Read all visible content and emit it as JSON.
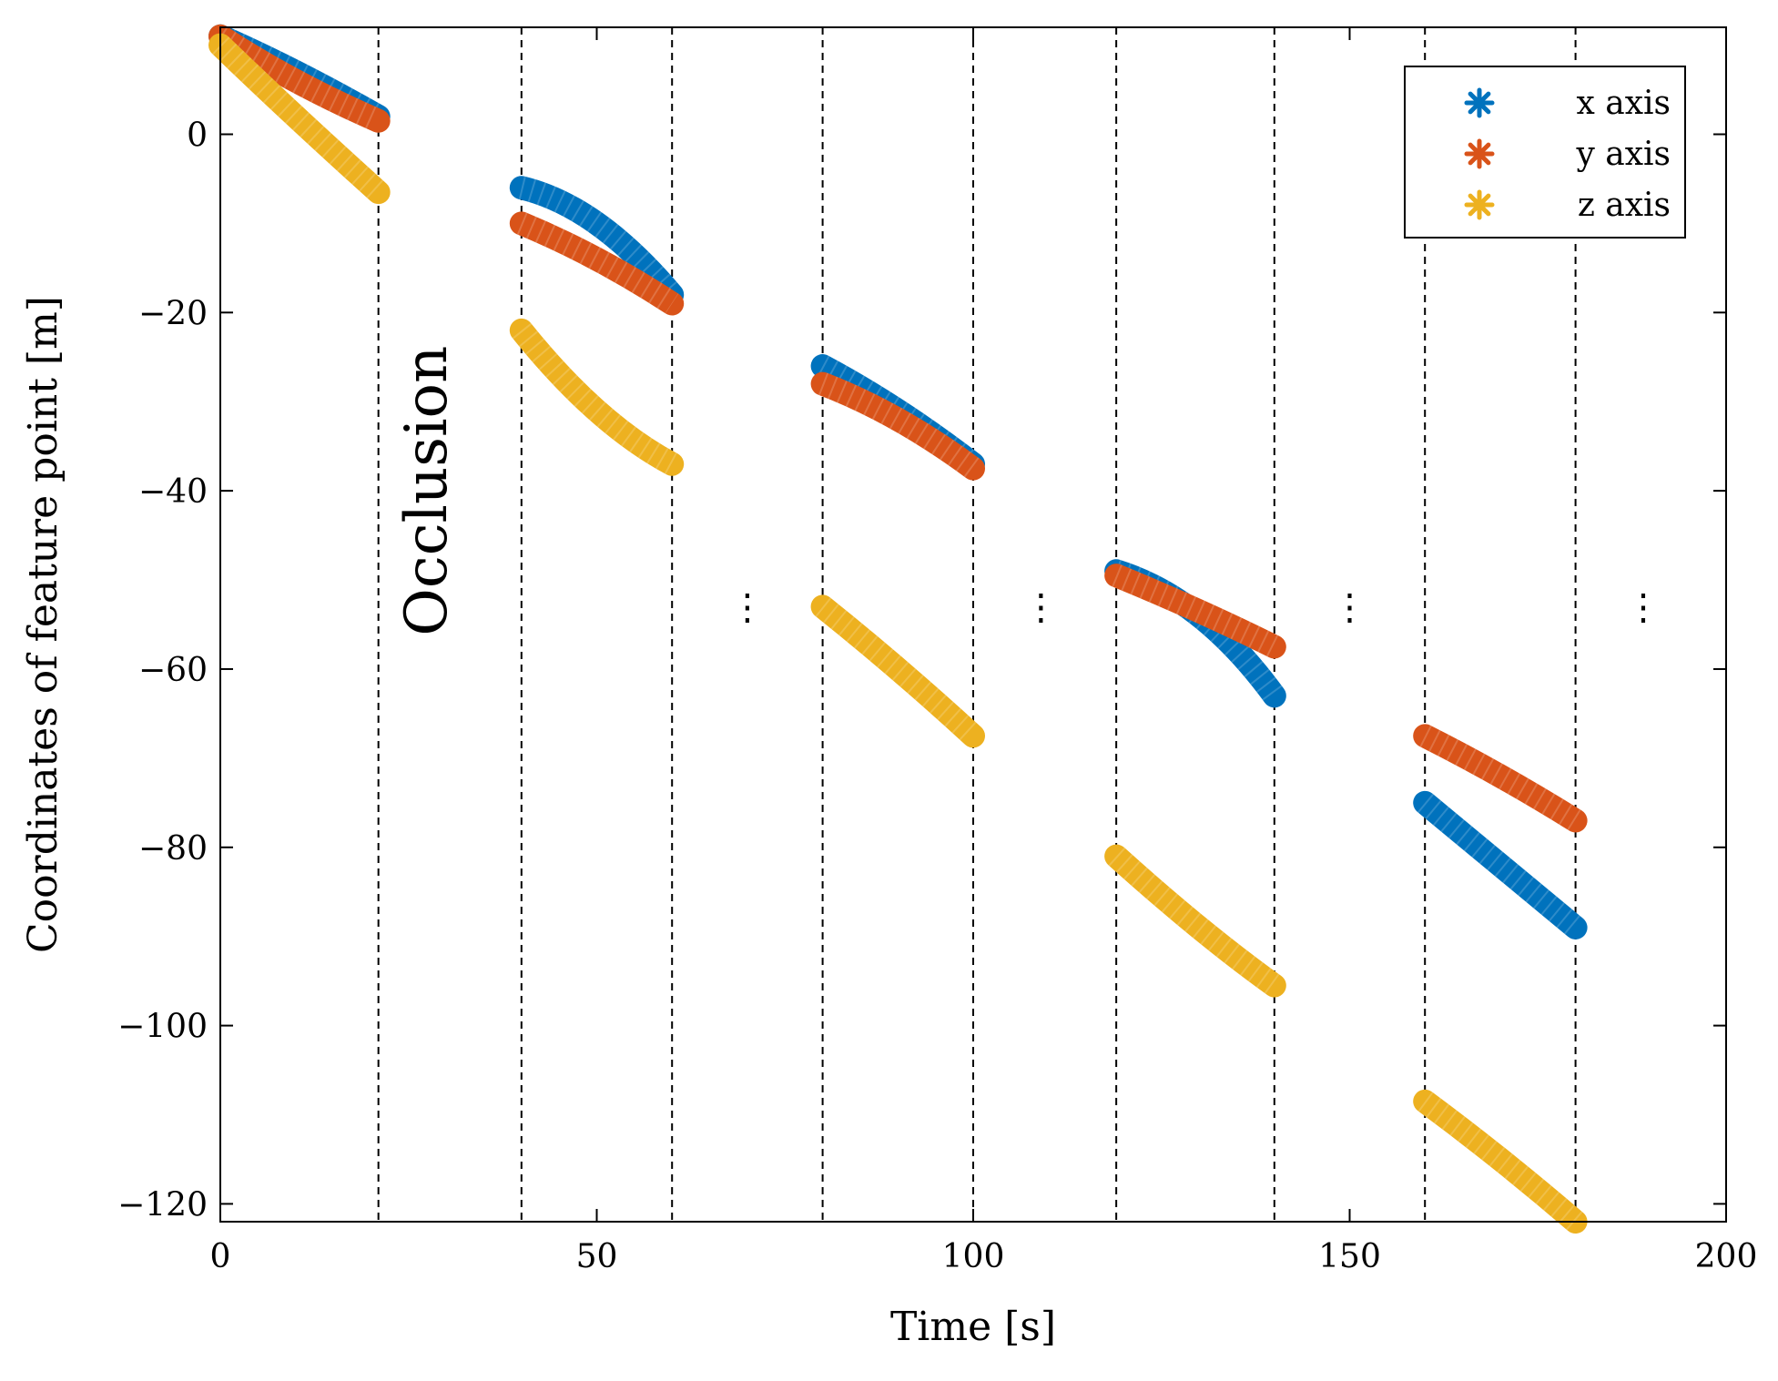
{
  "chart_data": {
    "type": "scatter",
    "title": "",
    "xlabel": "Time [s]",
    "ylabel": "Coordinates of feature point [m]",
    "xlim": [
      0,
      200
    ],
    "ylim": [
      -122,
      12
    ],
    "xticks": [
      0,
      50,
      100,
      150,
      200
    ],
    "yticks": [
      0,
      -20,
      -40,
      -60,
      -80,
      -100,
      -120
    ],
    "grid": false,
    "legend_position": "top-right",
    "marker": "asterisk",
    "colors": {
      "x": "#0072BD",
      "y": "#D95319",
      "z": "#EDB120"
    },
    "series": [
      {
        "name": "x axis",
        "color": "#0072BD",
        "segments": [
          {
            "t": [
              0,
              10,
              21
            ],
            "v": [
              11,
              7,
              2
            ]
          },
          {
            "t": [
              40,
              50,
              60
            ],
            "v": [
              -6,
              -10,
              -18
            ]
          },
          {
            "t": [
              80,
              90,
              100
            ],
            "v": [
              -26,
              -31,
              -37
            ]
          },
          {
            "t": [
              119,
              130,
              140
            ],
            "v": [
              -49,
              -54,
              -63
            ]
          },
          {
            "t": [
              160,
              170,
              180
            ],
            "v": [
              -75,
              -82,
              -89
            ]
          }
        ]
      },
      {
        "name": "y axis",
        "color": "#D95319",
        "segments": [
          {
            "t": [
              0,
              10,
              21
            ],
            "v": [
              11,
              6,
              1.5
            ]
          },
          {
            "t": [
              40,
              50,
              60
            ],
            "v": [
              -10,
              -14,
              -19
            ]
          },
          {
            "t": [
              80,
              90,
              100
            ],
            "v": [
              -28,
              -32,
              -37.5
            ]
          },
          {
            "t": [
              119,
              130,
              140
            ],
            "v": [
              -49.5,
              -53.5,
              -57.5
            ]
          },
          {
            "t": [
              160,
              170,
              180
            ],
            "v": [
              -67.5,
              -72,
              -77
            ]
          }
        ]
      },
      {
        "name": "z axis",
        "color": "#EDB120",
        "segments": [
          {
            "t": [
              0,
              10,
              21
            ],
            "v": [
              10,
              2,
              -6.5
            ]
          },
          {
            "t": [
              40,
              50,
              60
            ],
            "v": [
              -22,
              -31,
              -37
            ]
          },
          {
            "t": [
              80,
              90,
              100
            ],
            "v": [
              -53,
              -60,
              -67.5
            ]
          },
          {
            "t": [
              119,
              130,
              140
            ],
            "v": [
              -81,
              -89,
              -95.5
            ]
          },
          {
            "t": [
              160,
              170,
              180
            ],
            "v": [
              -108.5,
              -115,
              -122
            ]
          }
        ]
      }
    ],
    "vlines": [
      21,
      40,
      60,
      80,
      100,
      119,
      140,
      160,
      180
    ],
    "annotations": [
      {
        "text": "Occlusion",
        "t": 30,
        "v": -40,
        "rotation": -90
      }
    ],
    "ellipses": [
      {
        "text": "⋮",
        "t": 70,
        "v": -53
      },
      {
        "text": "⋮",
        "t": 109,
        "v": -53
      },
      {
        "text": "⋮",
        "t": 150,
        "v": -53
      },
      {
        "text": "⋮",
        "t": 189,
        "v": -53
      }
    ]
  }
}
